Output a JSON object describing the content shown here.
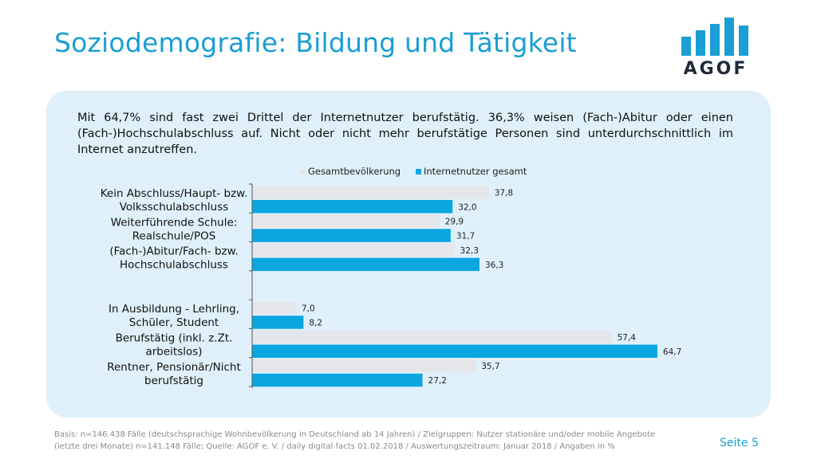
{
  "header": {
    "title": "Soziodemografie: Bildung und Tätigkeit",
    "logo_text": "AGOF"
  },
  "intro_text": "Mit 64,7% sind fast zwei Drittel der Internetnutzer berufstätig. 36,3% weisen (Fach-)Abitur oder einen (Fach-)Hochschulabschluss auf. Nicht oder nicht mehr berufstätige Personen sind unterdurchschnittlich im Internet anzutreffen.",
  "colors": {
    "title": "#1a9ed4",
    "panel": "#dff0fa",
    "series_gesamt": "#e4e6e9",
    "series_internet": "#0aa6e0",
    "logo": "#1a9ed4"
  },
  "chart_data": {
    "type": "bar",
    "orientation": "horizontal",
    "legend_position": "top",
    "categories": [
      [
        "Kein Abschluss/Haupt- bzw.",
        "Volksschulabschluss"
      ],
      [
        "Weiterführende Schule:",
        "Realschule/POS"
      ],
      [
        "(Fach-)Abitur/Fach- bzw.",
        "Hochschulabschluss"
      ],
      [
        "",
        ""
      ],
      [
        "In Ausbildung - Lehrling,",
        "Schüler, Student"
      ],
      [
        "Berufstätig (inkl. z.Zt.",
        "arbeitslos)"
      ],
      [
        "Rentner, Pensionär/Nicht",
        "berufstätig"
      ]
    ],
    "series": [
      {
        "name": "Gesamtbevölkerung",
        "values": [
          37.8,
          29.9,
          32.3,
          null,
          7.0,
          57.4,
          35.7
        ],
        "labels": [
          "37,8",
          "29,9",
          "32,3",
          "",
          "7,0",
          "57,4",
          "35,7"
        ]
      },
      {
        "name": "Internetnutzer gesamt",
        "values": [
          32.0,
          31.7,
          36.3,
          null,
          8.2,
          64.7,
          27.2
        ],
        "labels": [
          "32,0",
          "31,7",
          "36,3",
          "",
          "8,2",
          "64,7",
          "27,2"
        ]
      }
    ],
    "xlim": [
      0,
      65
    ]
  },
  "footer": {
    "note": "Basis: n=146.438 Fälle (deutschsprachige Wohnbevölkerung in Deutschland ab 14 Jahren) / Zielgruppen: Nutzer stationäre und/oder mobile Angebote (letzte drei Monate) n=141.148 Fälle; Quelle: AGOF e. V. / daily digital facts 01.02.2018 / Auswertungszeitraum: Januar 2018 / Angaben in %",
    "page": "Seite 5"
  }
}
